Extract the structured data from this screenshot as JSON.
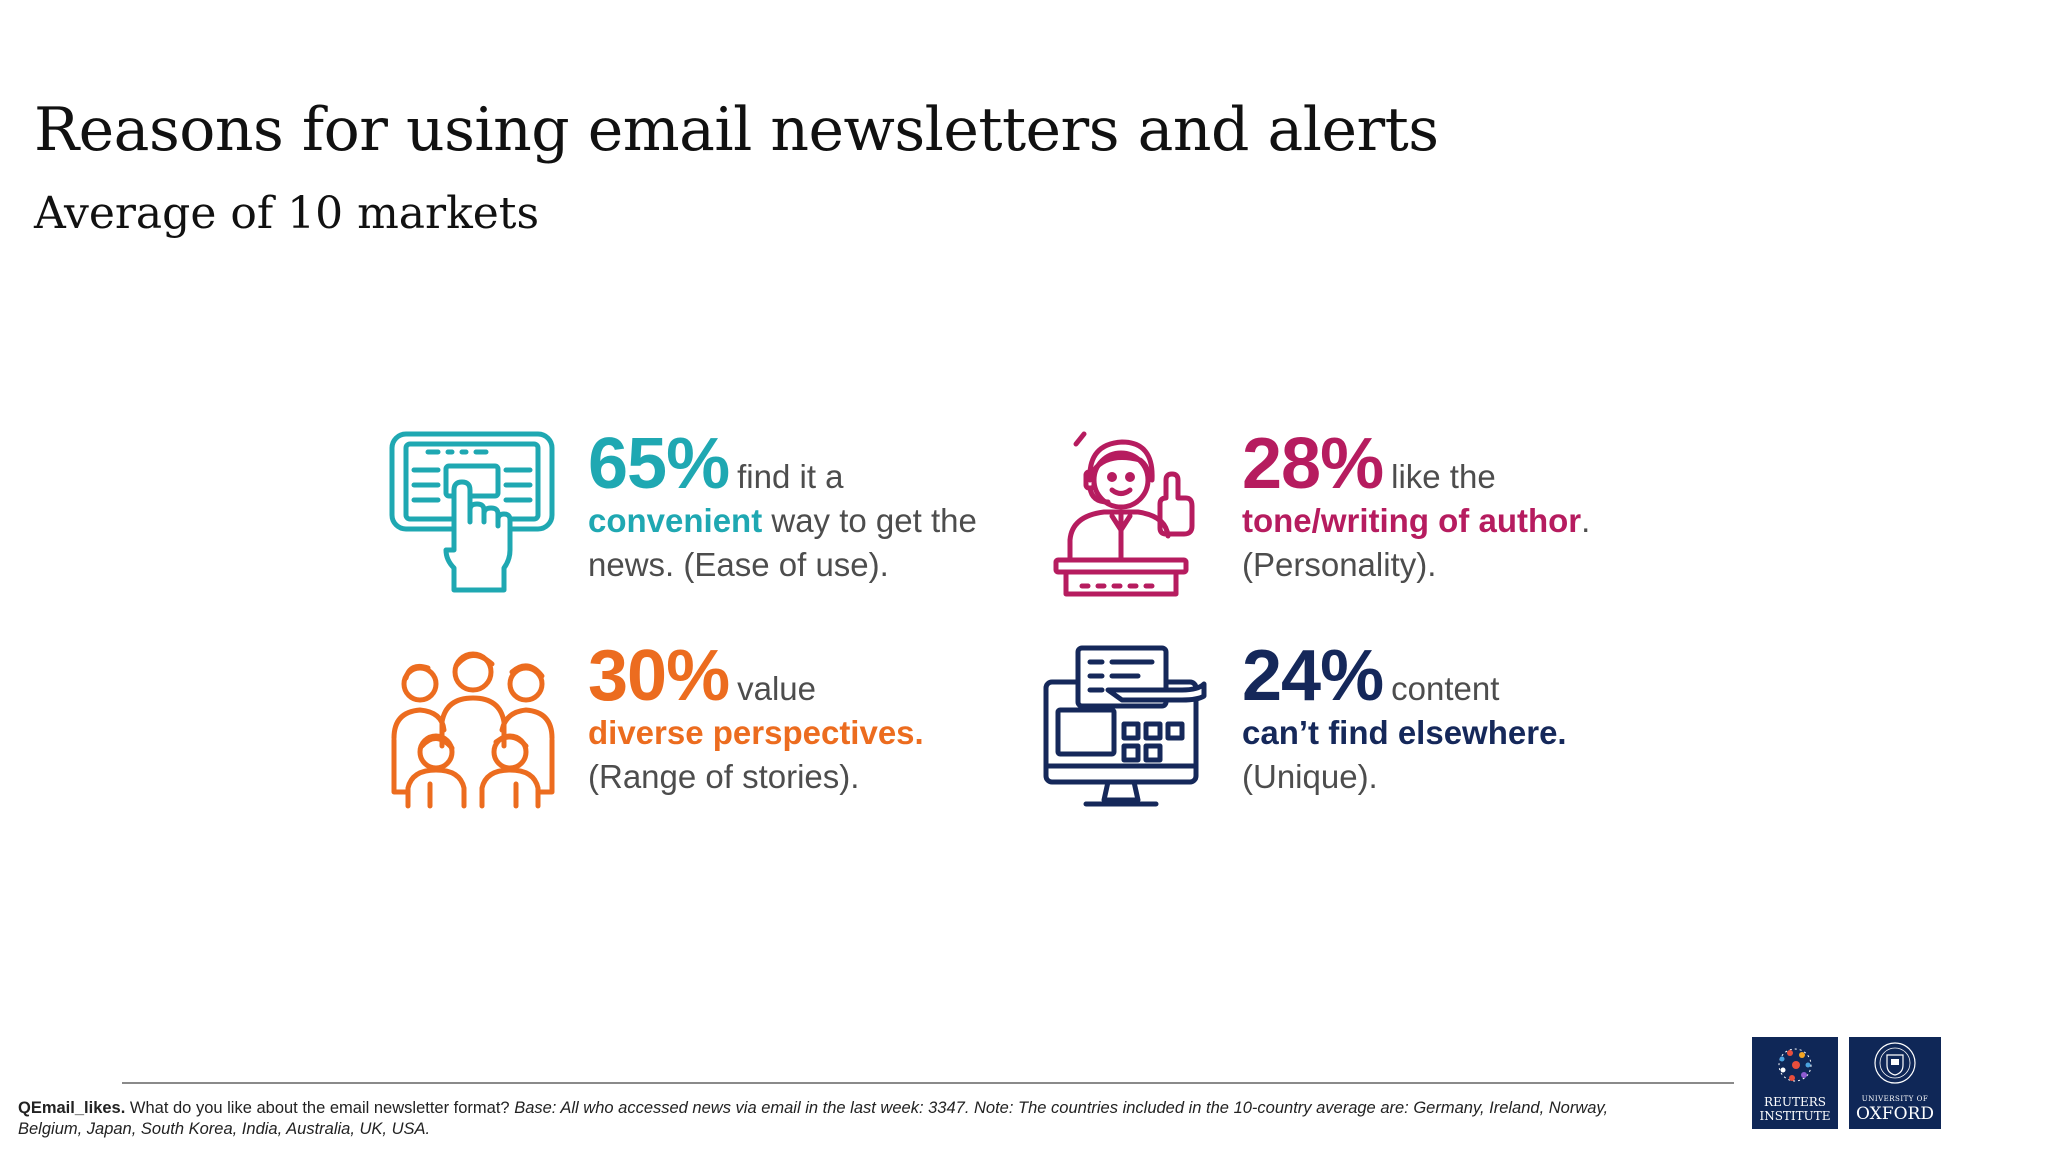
{
  "header": {
    "title": "Reasons for using email newsletters and alerts",
    "subtitle": "Average of 10 markets"
  },
  "chart_data": {
    "type": "table",
    "title": "Reasons for using email newsletters and alerts",
    "subtitle": "Average of 10 markets",
    "items": [
      {
        "value": 65,
        "value_label": "65%",
        "lead": "find it a",
        "highlight": "convenient",
        "rest": "way to get the news.",
        "tag": "(Ease of use).",
        "color": "#1fa8b2",
        "icon": "hand-tapping-tablet-icon"
      },
      {
        "value": 28,
        "value_label": "28%",
        "lead": "like the",
        "highlight": "tone/writing of author",
        "rest": ".",
        "tag": "(Personality).",
        "color": "#b61c5f",
        "icon": "speaker-at-podium-icon"
      },
      {
        "value": 30,
        "value_label": "30%",
        "lead": "value",
        "highlight": "diverse perspectives.",
        "rest": "",
        "tag": "(Range of stories).",
        "color": "#ec6c1f",
        "icon": "group-of-people-icon"
      },
      {
        "value": 24,
        "value_label": "24%",
        "lead": "content",
        "highlight": "can’t find elsewhere.",
        "rest": "",
        "tag": "(Unique).",
        "color": "#15285a",
        "icon": "computer-monitor-icon"
      }
    ]
  },
  "footnote": {
    "question_id": "QEmail_likes.",
    "question": " What do you like about the email newsletter format? ",
    "base": "Base: All who accessed news via email in the last week: 3347. Note: The countries included in the 10-country average are: Germany, Ireland, Norway, Belgium, Japan, South Korea, India, Australia, UK, USA."
  },
  "logos": {
    "reuters": [
      "REUTERS",
      "INSTITUTE"
    ],
    "oxford_small": "UNIVERSITY OF",
    "oxford": "OXFORD"
  }
}
